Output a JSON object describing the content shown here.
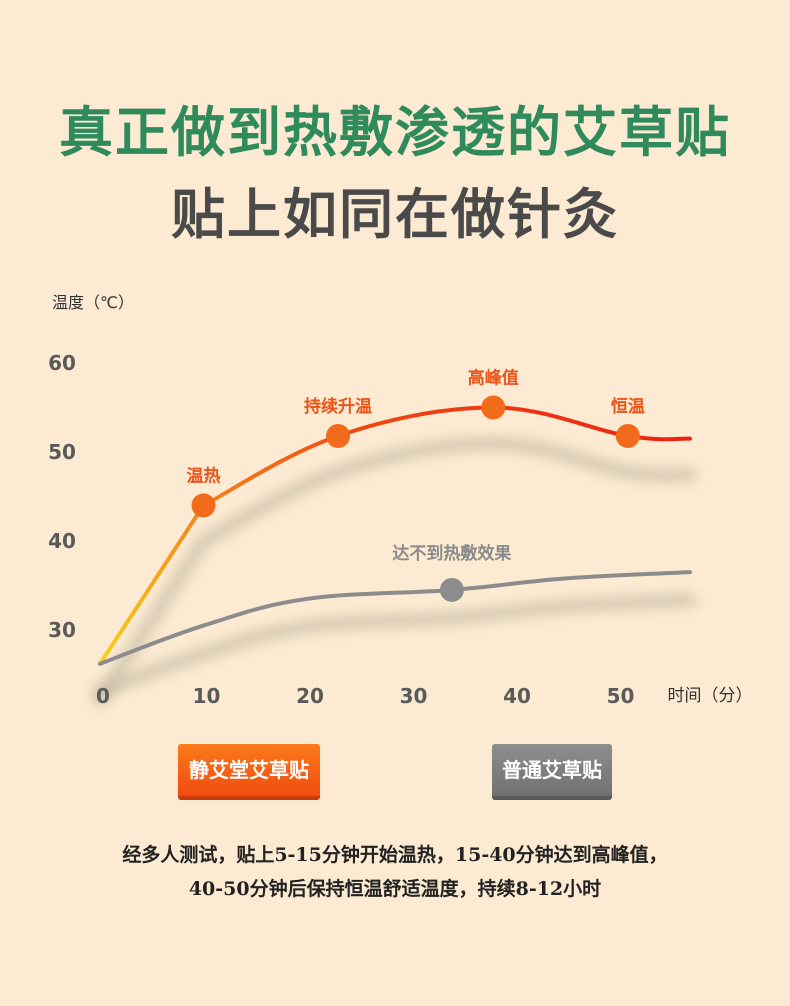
{
  "headline": {
    "line1": "真正做到热敷渗透的艾草贴",
    "line2": "贴上如同在做针灸"
  },
  "colors": {
    "accent_green": "#2f8a5c",
    "heat_orange": "#f26a1b",
    "heat_red": "#ee2a12",
    "gray_line": "#8c8c8c"
  },
  "chart_data": {
    "type": "line",
    "ylabel": "温度（℃）",
    "xlabel": "时间（分）",
    "x_ticks": [
      "0",
      "10",
      "20",
      "30",
      "40",
      "50"
    ],
    "y_ticks": [
      "30",
      "40",
      "50",
      "60"
    ],
    "xlim": [
      0,
      57
    ],
    "ylim": [
      26,
      60
    ],
    "grid": false,
    "series": [
      {
        "name": "静艾堂艾草贴",
        "color": "#ee2a12",
        "x": [
          0,
          10,
          23,
          38,
          51,
          57
        ],
        "y": [
          26.2,
          44,
          51.8,
          55,
          51.8,
          51.5
        ]
      },
      {
        "name": "普通艾草贴",
        "color": "#8c8c8c",
        "x": [
          0,
          10,
          20,
          34,
          45,
          57
        ],
        "y": [
          26.2,
          30.5,
          33.5,
          34.5,
          35.8,
          36.5
        ]
      }
    ],
    "annotations": [
      {
        "text": "温热",
        "x": 10,
        "y": 44,
        "series": 0
      },
      {
        "text": "持续升温",
        "x": 23,
        "y": 51.8,
        "series": 0
      },
      {
        "text": "高峰值",
        "x": 38,
        "y": 55,
        "series": 0
      },
      {
        "text": "恒温",
        "x": 51,
        "y": 51.8,
        "series": 0
      },
      {
        "text": "达不到热敷效果",
        "x": 34,
        "y": 34.5,
        "series": 1
      }
    ]
  },
  "legend": {
    "jingai_label": "静艾堂艾草贴",
    "normal_label": "普通艾草贴"
  },
  "note": {
    "line1": "经多人测试，贴上5-15分钟开始温热，15-40分钟达到高峰值，",
    "line2": "40-50分钟后保持恒温舒适温度，持续8-12小时"
  }
}
